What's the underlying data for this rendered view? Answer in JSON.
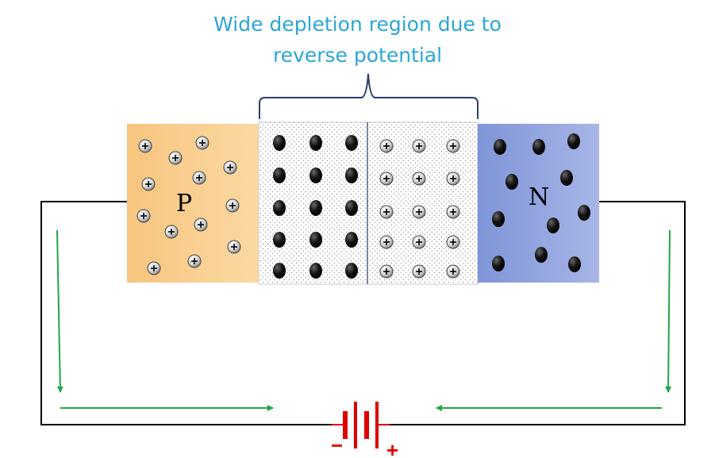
{
  "caption": {
    "line1": "Wide depletion region due to",
    "line2": "reverse potential"
  },
  "regions": {
    "p_label": "P",
    "n_label": "N"
  },
  "battery": {
    "negative_label": "−",
    "positive_label": "+"
  },
  "colors": {
    "caption": "#2aa7d6",
    "p_region": "#f7c983",
    "n_region": "#8d9fdb",
    "arrows": "#22a64a",
    "battery": "#e00000",
    "wire": "#000000",
    "bracket": "#2c3e6b"
  }
}
